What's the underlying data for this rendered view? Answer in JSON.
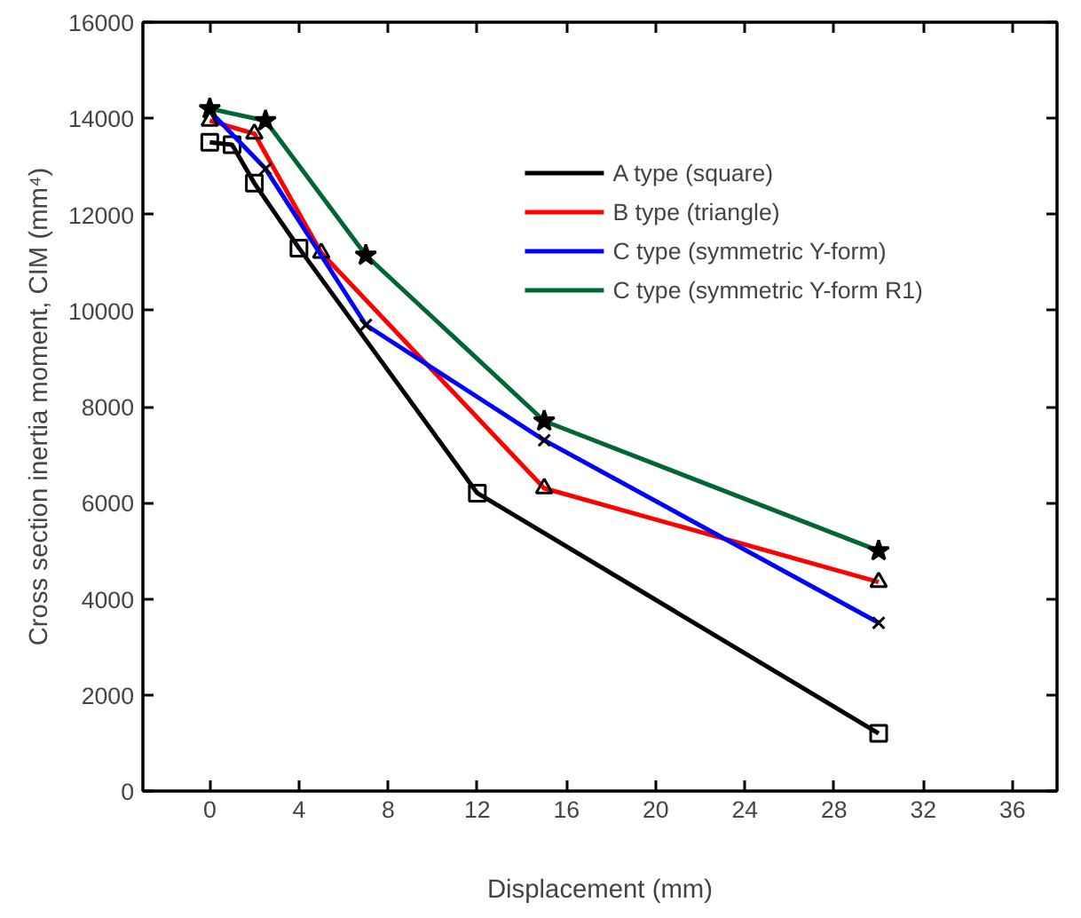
{
  "chart_data": {
    "type": "line",
    "xlabel": "Displacement (mm)",
    "ylabel": "Cross section inertia moment, CIM (mm⁴)",
    "xlim": [
      -3,
      38
    ],
    "xticks": [
      0,
      4,
      8,
      12,
      16,
      20,
      24,
      28,
      32,
      36
    ],
    "ylim": [
      0,
      16000
    ],
    "yticks": [
      0,
      2000,
      4000,
      6000,
      8000,
      10000,
      12000,
      14000,
      16000
    ],
    "grid": false,
    "legend": "top right",
    "series": [
      {
        "name": "A type (square)",
        "color": "#000000",
        "marker": "square",
        "x": [
          0,
          1,
          2,
          4,
          12,
          30
        ],
        "values": [
          13500,
          13450,
          12650,
          11300,
          6200,
          1200
        ]
      },
      {
        "name": "B type (triangle)",
        "color": "#ff0000",
        "marker": "triangle",
        "x": [
          0,
          2,
          5,
          15,
          30
        ],
        "values": [
          13950,
          13680,
          11200,
          6300,
          4350
        ]
      },
      {
        "name": "C type (symmetric Y-form)",
        "color": "#0000ff",
        "marker": "cross",
        "x": [
          0,
          2.5,
          7,
          15,
          30
        ],
        "values": [
          14150,
          12950,
          9700,
          7300,
          3500
        ]
      },
      {
        "name": "C type (symmetric Y-form R1)",
        "color": "#006633",
        "marker": "star",
        "x": [
          0,
          2.5,
          7,
          15,
          30
        ],
        "values": [
          14200,
          13950,
          11150,
          7700,
          5000
        ]
      }
    ]
  }
}
